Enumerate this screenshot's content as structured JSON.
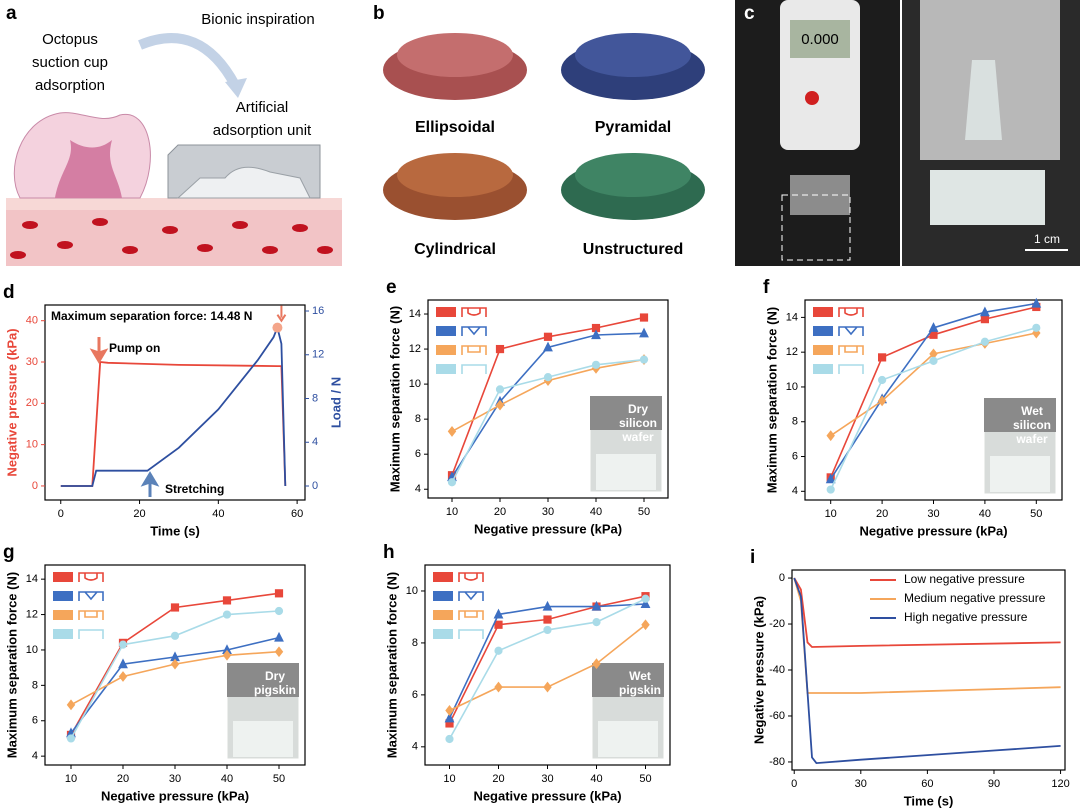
{
  "panels": {
    "a": {
      "letter": "a",
      "octopus": [
        "Octopus",
        "suction cup",
        "adsorption"
      ],
      "inspiration": "Bionic inspiration",
      "unit": [
        "Artificial",
        "adsorption unit"
      ]
    },
    "b": {
      "letter": "b",
      "shapes": [
        "Ellipsoidal",
        "Pyramidal",
        "Cylindrical",
        "Unstructured"
      ]
    },
    "c": {
      "letter": "c",
      "scale": "1 cm",
      "display": "0.000"
    }
  },
  "chart_data": [
    {
      "type": "line",
      "panel": "d",
      "xlabel": "Time (s)",
      "ylabel": "Negative pressure (kPa)",
      "y2label": "Load / N",
      "y_color": "#e8473a",
      "y2_color": "#2e4fa0",
      "annotations": [
        "Maximum separation force: 14.48 N",
        "Pump on",
        "Stretching"
      ],
      "xlim": [
        -4,
        62
      ],
      "xticks": [
        0,
        20,
        40,
        60
      ],
      "ylim": [
        -3.4,
        43.8
      ],
      "yticks": [
        0,
        10,
        20,
        30,
        40
      ],
      "y2lim": [
        -1.28,
        16.55
      ],
      "y2ticks": [
        0,
        4,
        8,
        12,
        16
      ],
      "peak": {
        "x": 55,
        "y": 14.48
      },
      "series": [
        {
          "color": "#e8473a",
          "x": [
            0,
            8,
            10,
            12,
            30,
            55,
            56,
            57
          ],
          "values": [
            0,
            0,
            30,
            29.8,
            29.3,
            29,
            29,
            0
          ]
        },
        {
          "color": "#2e4fa0",
          "axis": "y2",
          "x": [
            0,
            8,
            9,
            22,
            30,
            40,
            50,
            54,
            55,
            56,
            57
          ],
          "values": [
            0,
            0,
            1.4,
            1.4,
            3.5,
            7,
            11.5,
            13.6,
            14.48,
            13,
            0
          ]
        }
      ]
    },
    {
      "type": "line",
      "panel": "e",
      "markers": true,
      "legend": "upper left",
      "xlabel": "Negative pressure (kPa)",
      "ylabel": "Maximum separation force (N)",
      "inset": [
        "Dry",
        "silicon",
        "wafer"
      ],
      "x": [
        10,
        20,
        30,
        40,
        50
      ],
      "xlim": [
        5,
        55
      ],
      "xticks": [
        10,
        20,
        30,
        40,
        50
      ],
      "ylim": [
        3.5,
        14.8
      ],
      "yticks": [
        4,
        6,
        8,
        10,
        12,
        14
      ],
      "series": [
        {
          "color": "#e8473a",
          "marker": "square",
          "values": [
            4.8,
            12.0,
            12.7,
            13.2,
            13.8
          ]
        },
        {
          "color": "#3d6fc2",
          "marker": "triangle",
          "values": [
            4.7,
            9.0,
            12.1,
            12.8,
            12.9
          ]
        },
        {
          "color": "#f5a65b",
          "marker": "diamond",
          "values": [
            7.3,
            8.8,
            10.2,
            10.9,
            11.4
          ]
        },
        {
          "color": "#a9dbe8",
          "marker": "circle",
          "values": [
            4.4,
            9.7,
            10.4,
            11.1,
            11.4
          ]
        }
      ]
    },
    {
      "type": "line",
      "panel": "f",
      "markers": true,
      "legend": "upper left",
      "xlabel": "Negative pressure (kPa)",
      "ylabel": "Maximum separation force (N)",
      "inset": [
        "Wet",
        "silicon",
        "wafer"
      ],
      "x": [
        10,
        20,
        30,
        40,
        50
      ],
      "xlim": [
        5,
        55
      ],
      "xticks": [
        10,
        20,
        30,
        40,
        50
      ],
      "ylim": [
        3.5,
        15
      ],
      "yticks": [
        4,
        6,
        8,
        10,
        12,
        14
      ],
      "series": [
        {
          "color": "#e8473a",
          "marker": "square",
          "values": [
            4.8,
            11.7,
            13.0,
            13.9,
            14.6
          ]
        },
        {
          "color": "#3d6fc2",
          "marker": "triangle",
          "values": [
            4.7,
            9.3,
            13.4,
            14.3,
            14.8
          ]
        },
        {
          "color": "#f5a65b",
          "marker": "diamond",
          "values": [
            7.2,
            9.2,
            11.9,
            12.5,
            13.1
          ]
        },
        {
          "color": "#a9dbe8",
          "marker": "circle",
          "values": [
            4.1,
            10.4,
            11.5,
            12.6,
            13.4
          ]
        }
      ]
    },
    {
      "type": "line",
      "panel": "g",
      "markers": true,
      "legend": "upper left",
      "xlabel": "Negative pressure (kPa)",
      "ylabel": "Maximum separation force (N)",
      "inset": [
        "Dry",
        "pigskin"
      ],
      "x": [
        10,
        20,
        30,
        40,
        50
      ],
      "xlim": [
        5,
        55
      ],
      "xticks": [
        10,
        20,
        30,
        40,
        50
      ],
      "ylim": [
        3.5,
        14.8
      ],
      "yticks": [
        4,
        6,
        8,
        10,
        12,
        14
      ],
      "series": [
        {
          "color": "#e8473a",
          "marker": "square",
          "values": [
            5.2,
            10.4,
            12.4,
            12.8,
            13.2
          ]
        },
        {
          "color": "#3d6fc2",
          "marker": "triangle",
          "values": [
            5.3,
            9.2,
            9.6,
            10.0,
            10.7
          ]
        },
        {
          "color": "#f5a65b",
          "marker": "diamond",
          "values": [
            6.9,
            8.5,
            9.2,
            9.7,
            9.9
          ]
        },
        {
          "color": "#a9dbe8",
          "marker": "circle",
          "values": [
            5.0,
            10.3,
            10.8,
            12.0,
            12.2
          ]
        }
      ]
    },
    {
      "type": "line",
      "panel": "h",
      "markers": true,
      "legend": "upper left",
      "xlabel": "Negative pressure (kPa)",
      "ylabel": "Maximum separation force (N)",
      "inset": [
        "Wet",
        "pigskin"
      ],
      "x": [
        10,
        20,
        30,
        40,
        50
      ],
      "xlim": [
        5,
        55
      ],
      "xticks": [
        10,
        20,
        30,
        40,
        50
      ],
      "ylim": [
        3.3,
        11
      ],
      "yticks": [
        4,
        6,
        8,
        10
      ],
      "series": [
        {
          "color": "#e8473a",
          "marker": "square",
          "values": [
            4.9,
            8.7,
            8.9,
            9.4,
            9.8
          ]
        },
        {
          "color": "#3d6fc2",
          "marker": "triangle",
          "values": [
            5.1,
            9.1,
            9.4,
            9.4,
            9.5
          ]
        },
        {
          "color": "#f5a65b",
          "marker": "diamond",
          "values": [
            5.4,
            6.3,
            6.3,
            7.2,
            8.7
          ]
        },
        {
          "color": "#a9dbe8",
          "marker": "circle",
          "values": [
            4.3,
            7.7,
            8.5,
            8.8,
            9.7
          ]
        }
      ]
    },
    {
      "type": "line",
      "panel": "i",
      "legend": "upper right",
      "xlabel": "Time (s)",
      "ylabel": "Negative pressure (kPa)",
      "xlim": [
        -1,
        122
      ],
      "xticks": [
        0,
        30,
        60,
        90,
        120
      ],
      "ylim": [
        -83.5,
        3.5
      ],
      "yticks": [
        0,
        -20,
        -40,
        -60,
        -80
      ],
      "series": [
        {
          "name": "Low negative pressure",
          "color": "#e8473a",
          "x": [
            0,
            3,
            6,
            8,
            30,
            120
          ],
          "values": [
            0,
            -5,
            -28,
            -30,
            -29.5,
            -28
          ]
        },
        {
          "name": "Medium negative pressure",
          "color": "#f5a65b",
          "x": [
            0,
            3,
            6,
            30,
            120
          ],
          "values": [
            0,
            -10,
            -50,
            -50,
            -47.5
          ]
        },
        {
          "name": "High negative pressure",
          "color": "#2e4fa0",
          "x": [
            0,
            3,
            8,
            10,
            30,
            60,
            90,
            120
          ],
          "values": [
            0,
            -8,
            -78,
            -80.5,
            -79,
            -77,
            -75,
            -73
          ]
        }
      ]
    }
  ]
}
